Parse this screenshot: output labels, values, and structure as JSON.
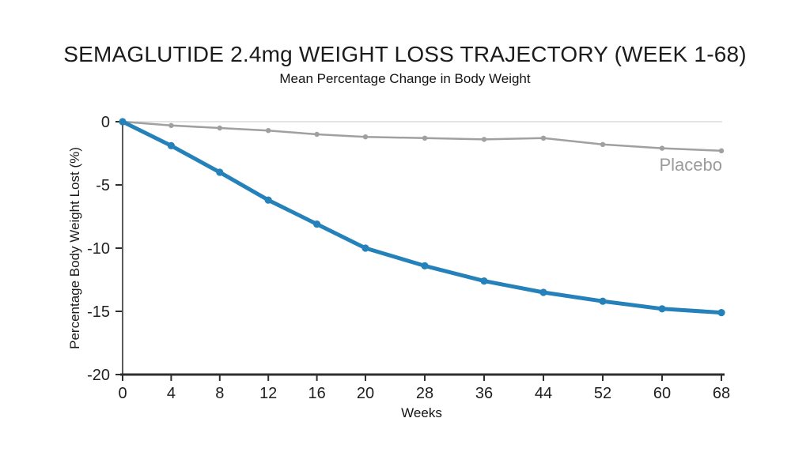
{
  "header": {
    "title": "SEMAGLUTIDE 2.4mg WEIGHT LOSS TRAJECTORY (WEEK 1-68)",
    "subtitle": "Mean Percentage Change in Body Weight"
  },
  "chart_data": {
    "type": "line",
    "title": "SEMAGLUTIDE 2.4mg WEIGHT LOSS TRAJECTORY (WEEK 1-68)",
    "subtitle": "Mean Percentage Change in Body Weight",
    "xlabel": "Weeks",
    "ylabel": "Percentage Body Weight Lost (%)",
    "x": [
      0,
      4,
      8,
      12,
      16,
      20,
      28,
      36,
      44,
      52,
      60,
      68
    ],
    "xticks": [
      0,
      4,
      8,
      12,
      16,
      20,
      28,
      36,
      44,
      52,
      60,
      68
    ],
    "yticks": [
      0,
      -5,
      -10,
      -15,
      -20
    ],
    "ylim": [
      -20,
      0
    ],
    "grid": "zero-baseline-only",
    "legend_position": "inline-right-of-placebo-line",
    "series": [
      {
        "name": "Semaglutide 2.4mg",
        "label_visible": false,
        "color": "#2581b9",
        "marker": "circle",
        "values": [
          0,
          -1.9,
          -4.0,
          -6.2,
          -8.1,
          -10.0,
          -11.4,
          -12.6,
          -13.5,
          -14.2,
          -14.8,
          -15.1
        ]
      },
      {
        "name": "Placebo",
        "label_visible": true,
        "color": "#a0a0a0",
        "marker": "circle",
        "values": [
          0,
          -0.3,
          -0.5,
          -0.7,
          -1.0,
          -1.2,
          -1.3,
          -1.4,
          -1.3,
          -1.8,
          -2.1,
          -2.3
        ]
      }
    ]
  },
  "colors": {
    "background": "#ffffff",
    "semaglutide_line": "#2581b9",
    "placebo_line": "#a0a0a0",
    "axis": "#2e2e2e",
    "y_axis_line": "#5a5a5a",
    "zero_gridline": "#dcdcdc",
    "tick_label": "#1f1f1f",
    "placebo_label": "#9b9b9b"
  }
}
